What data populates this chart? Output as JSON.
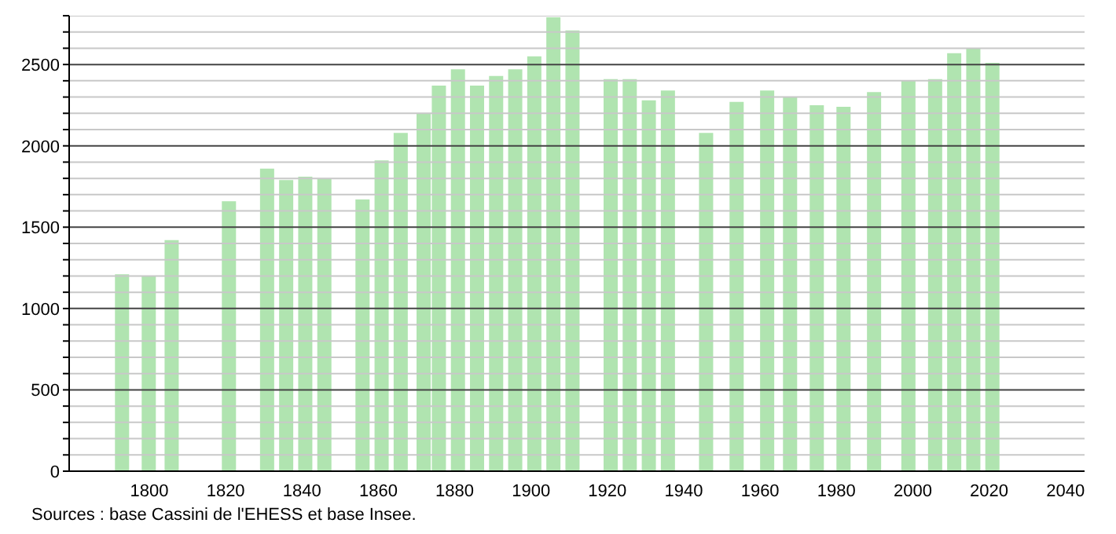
{
  "chart_data": {
    "type": "bar",
    "x": [
      1793,
      1800,
      1806,
      1821,
      1831,
      1836,
      1841,
      1846,
      1856,
      1861,
      1866,
      1872,
      1876,
      1881,
      1886,
      1891,
      1896,
      1901,
      1906,
      1911,
      1921,
      1926,
      1931,
      1936,
      1946,
      1954,
      1962,
      1968,
      1975,
      1982,
      1990,
      1999,
      2006,
      2011,
      2016,
      2021
    ],
    "values": [
      1210,
      1200,
      1420,
      1660,
      1860,
      1790,
      1810,
      1800,
      1670,
      1910,
      2080,
      2200,
      2370,
      2470,
      2370,
      2430,
      2470,
      2550,
      2790,
      2710,
      2410,
      2410,
      2280,
      2340,
      2080,
      2270,
      2340,
      2300,
      2250,
      2240,
      2330,
      2400,
      2410,
      2570,
      2600,
      2510
    ],
    "color": "#b0e4b0",
    "xlim": [
      1779,
      2045
    ],
    "xticks": [
      1800,
      1820,
      1840,
      1860,
      1880,
      1900,
      1920,
      1940,
      1960,
      1980,
      2000,
      2020,
      2040
    ],
    "ylim": [
      0,
      2800
    ],
    "yticks": [
      0,
      {
        "value": 100,
        "label": null
      },
      {
        "value": 200,
        "label": null
      },
      {
        "value": 300,
        "label": null
      },
      {
        "value": 400,
        "label": null
      },
      500,
      {
        "value": 600,
        "label": null
      },
      {
        "value": 700,
        "label": null
      },
      {
        "value": 800,
        "label": null
      },
      {
        "value": 900,
        "label": null
      },
      1000,
      {
        "value": 1100,
        "label": null
      },
      {
        "value": 1200,
        "label": null
      },
      {
        "value": 1300,
        "label": null
      },
      {
        "value": 1400,
        "label": null
      },
      1500,
      {
        "value": 1600,
        "label": null
      },
      {
        "value": 1700,
        "label": null
      },
      {
        "value": 1800,
        "label": null
      },
      {
        "value": 1900,
        "label": null
      },
      2000,
      {
        "value": 2100,
        "label": null
      },
      {
        "value": 2200,
        "label": null
      },
      {
        "value": 2300,
        "label": null
      },
      {
        "value": 2400,
        "label": null
      },
      2500,
      {
        "value": 2600,
        "label": null
      },
      {
        "value": 2700,
        "label": null
      },
      {
        "value": 2800,
        "label": null
      }
    ],
    "grid": "y",
    "annotations": [
      "Sources : base Cassini de l'EHESS et base Insee."
    ]
  }
}
